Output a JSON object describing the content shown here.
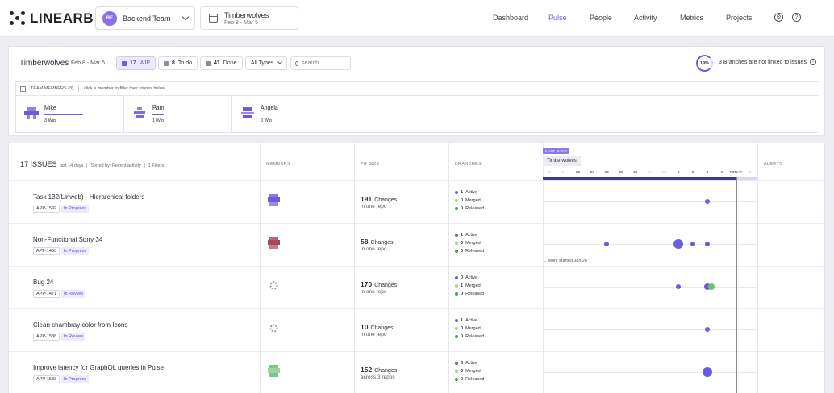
{
  "nav": {
    "logo": "LINEARB",
    "team": {
      "initials": "BE",
      "name": "Backend Team"
    },
    "sprint": {
      "name": "Timberwolves",
      "dates": "Feb 8 - Mar 5"
    },
    "links": [
      "Dashboard",
      "Pulse",
      "People",
      "Activity",
      "Metrics",
      "Projects"
    ],
    "active_link": "Pulse"
  },
  "sprint_panel": {
    "title": "Timberwolves",
    "dates": "Feb 8 - Mar 5",
    "filters": {
      "wip": {
        "count": "17",
        "label": "WIP"
      },
      "todo": {
        "count": "8",
        "label": "To do"
      },
      "done": {
        "count": "41",
        "label": "Done"
      },
      "type": "All Types"
    },
    "search_placeholder": "search",
    "unlinked_percent": "19%",
    "unlinked_text": "3 Branches are not linked to issues",
    "team_members_label": "TEAM MEMBERS (3)",
    "team_members_hint": "click a member to filter their stories below",
    "members": [
      {
        "name": "Mike",
        "wip": "3 Wip",
        "progress": 1.0
      },
      {
        "name": "Pam",
        "wip": "1 Wip",
        "progress": 0.3
      },
      {
        "name": "Angela",
        "wip": "0 Wip",
        "progress": 0
      }
    ]
  },
  "issues_panel": {
    "count": "17 ISSUES",
    "period": "last 14 days",
    "sort": "Sorted by: Recent activity",
    "filters": "1 Filters",
    "columns": {
      "members": "MEMBERS",
      "pr_size": "PR SIZE",
      "branches": "BRANCHES",
      "alerts": "ALERTS"
    },
    "timeline_tag": "LAST DAYS",
    "sprint_tag": "Timberwolves",
    "days": [
      "20",
      "21",
      "22",
      "23",
      "24",
      "25",
      "26",
      "27",
      "28",
      "1",
      "2",
      "3",
      "4",
      "TODAY",
      "6"
    ],
    "work_started": "work started Jan 26",
    "issues": [
      {
        "title": "Task 132(Linweb) - Hierarchical folders",
        "id": "APP-1592",
        "status": "In Progress",
        "changes": "191",
        "changes_label": "Changes",
        "scope": "in one repo",
        "active": "1",
        "merged": "0",
        "released": "0",
        "dots": [
          {
            "day": "3",
            "r": 3,
            "color": "purple"
          }
        ]
      },
      {
        "title": "Non-Functional Story 34",
        "id": "APP-1463",
        "status": "In Progress",
        "changes": "58",
        "changes_label": "Changes",
        "scope": "in one repo",
        "active": "1",
        "merged": "0",
        "released": "0",
        "dots": [
          {
            "day": "24",
            "r": 3,
            "color": "purple"
          },
          {
            "day": "1",
            "r": 6,
            "color": "purple"
          },
          {
            "day": "2",
            "r": 3,
            "color": "purple"
          },
          {
            "day": "3",
            "r": 3,
            "color": "purple"
          }
        ]
      },
      {
        "title": "Bug 24",
        "id": "APP-1471",
        "status": "In Review",
        "changes": "170",
        "changes_label": "Changes",
        "scope": "in one repo",
        "active": "0",
        "merged": "1",
        "released": "0",
        "dots": [
          {
            "day": "1",
            "r": 3,
            "color": "purple"
          },
          {
            "day": "3",
            "r": 4,
            "color": "purple"
          },
          {
            "day": "3",
            "r": 4,
            "color": "green"
          }
        ]
      },
      {
        "title": "Clean chambray color from Icons",
        "id": "APP-1588",
        "status": "In Review",
        "changes": "10",
        "changes_label": "Changes",
        "scope": "in one repo",
        "active": "1",
        "merged": "0",
        "released": "0",
        "dots": [
          {
            "day": "3",
            "r": 3,
            "color": "purple"
          }
        ]
      },
      {
        "title": "Improve latency for GraphQL queries in Pulse",
        "id": "APP-1583",
        "status": "In Progress",
        "changes": "152",
        "changes_label": "Changes",
        "scope": "across 3 repos",
        "active": "3",
        "merged": "0",
        "released": "0",
        "dots": [
          {
            "day": "3",
            "r": 6,
            "color": "purple"
          }
        ]
      }
    ],
    "branch_labels": {
      "active": "Active",
      "merged": "Merged",
      "released": "Released"
    }
  },
  "colors": {
    "accent": "#6a5ce0",
    "active": "#6a5ce0",
    "merged": "#a6d88a",
    "released": "#3fa34d"
  }
}
